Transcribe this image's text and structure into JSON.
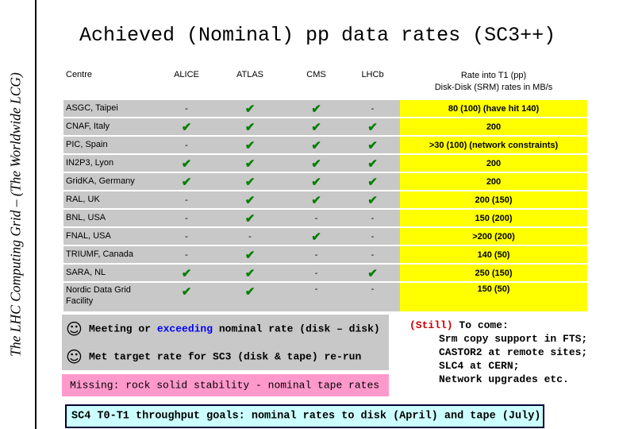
{
  "side_title": "The LHC Computing Grid – (The Worldwide LCG)",
  "title": "Achieved (Nominal) pp data rates (SC3++)",
  "table": {
    "headers": [
      "Centre",
      "ALICE",
      "ATLAS",
      "CMS",
      "LHCb"
    ],
    "rate_header_line1": "Rate into T1 (pp)",
    "rate_header_line2": "Disk-Disk (SRM) rates in MB/s",
    "rows": [
      {
        "centre": "ASGC, Taipei",
        "alice": "-",
        "atlas": "✔",
        "cms": "✔",
        "lhcb": "-",
        "rate": "80 (100) (have hit 140)"
      },
      {
        "centre": "CNAF, Italy",
        "alice": "✔",
        "atlas": "✔",
        "cms": "✔",
        "lhcb": "✔",
        "rate": "200"
      },
      {
        "centre": "PIC, Spain",
        "alice": "-",
        "atlas": "✔",
        "cms": "✔",
        "lhcb": "✔",
        "rate": ">30 (100) (network constraints)"
      },
      {
        "centre": "IN2P3, Lyon",
        "alice": "✔",
        "atlas": "✔",
        "cms": "✔",
        "lhcb": "✔",
        "rate": "200"
      },
      {
        "centre": "GridKA, Germany",
        "alice": "✔",
        "atlas": "✔",
        "cms": "✔",
        "lhcb": "✔",
        "rate": "200"
      },
      {
        "centre": "RAL, UK",
        "alice": "-",
        "atlas": "✔",
        "cms": "✔",
        "lhcb": "✔",
        "rate": "200 (150)"
      },
      {
        "centre": "BNL, USA",
        "alice": "-",
        "atlas": "✔",
        "cms": "-",
        "lhcb": "-",
        "rate": "150 (200)"
      },
      {
        "centre": "FNAL, USA",
        "alice": "-",
        "atlas": "-",
        "cms": "✔",
        "lhcb": "-",
        "rate": ">200 (200)"
      },
      {
        "centre": "TRIUMF, Canada",
        "alice": "-",
        "atlas": "✔",
        "cms": "-",
        "lhcb": "-",
        "rate": "140 (50)"
      },
      {
        "centre": "SARA, NL",
        "alice": "✔",
        "atlas": "✔",
        "cms": "-",
        "lhcb": "✔",
        "rate": "250 (150)"
      },
      {
        "centre_line1": "Nordic Data Grid",
        "centre_line2": "Facility",
        "alice": "✔",
        "atlas": "✔",
        "cms": "-",
        "lhcb": "-",
        "rate": "150 (50)"
      }
    ]
  },
  "bullets": {
    "meeting_pre": "Meeting or ",
    "meeting_highlight": "exceeding",
    "meeting_post": " nominal rate (disk – disk)",
    "met_target": "Met target rate for SC3 (disk & tape) re-run",
    "missing": "Missing: rock solid stability - nominal tape rates",
    "smiley": "☺"
  },
  "to_come": {
    "still": "(Still)",
    "label": " To come:",
    "items": [
      "Srm copy support in FTS;",
      "CASTOR2 at remote sites;",
      "SLC4 at CERN;",
      "Network upgrades etc."
    ]
  },
  "goal": "SC4 T0-T1 throughput goals: nominal rates to disk (April) and tape (July)",
  "colors": {
    "row_bg": "#c8c8c8",
    "rate_bg": "#ffff00",
    "tick": "#008000",
    "missing_bg": "#ff99cc",
    "goal_bg": "#ccffff",
    "still": "#cc0000",
    "exceeding": "#0000ff"
  }
}
